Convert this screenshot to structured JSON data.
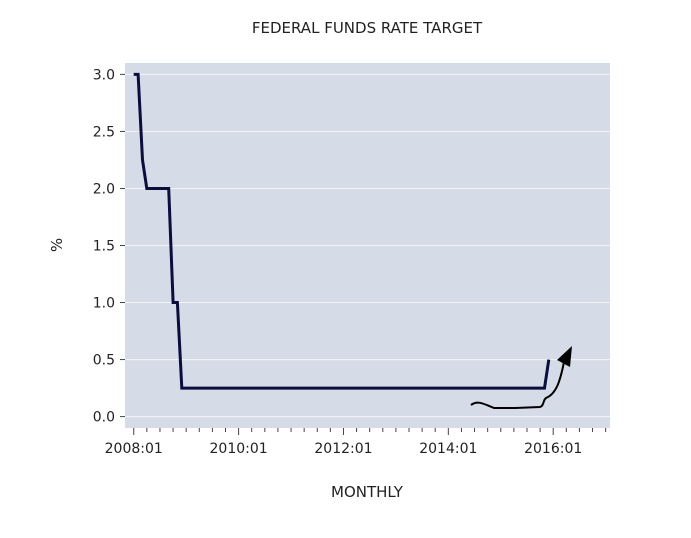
{
  "chart_data": {
    "type": "line",
    "title": "FEDERAL FUNDS RATE TARGET",
    "xlabel": "MONTHLY",
    "ylabel": "%",
    "x_ticks": [
      "2008:01",
      "2010:01",
      "2012:01",
      "2014:01",
      "2016:01"
    ],
    "y_ticks": [
      "0.0",
      "0.5",
      "1.0",
      "1.5",
      "2.0",
      "2.5",
      "3.0"
    ],
    "xlim": [
      "2007-11",
      "2017-02"
    ],
    "ylim": [
      -0.1,
      3.1
    ],
    "grid": "horizontal",
    "series": [
      {
        "x": [
          "2008-01",
          "2008-02",
          "2008-03",
          "2008-04",
          "2008-05",
          "2008-06",
          "2008-07",
          "2008-08",
          "2008-09",
          "2008-10",
          "2008-11",
          "2008-12",
          "2009-01",
          "2009-06",
          "2010-01",
          "2011-01",
          "2012-01",
          "2013-01",
          "2014-01",
          "2015-01",
          "2015-10",
          "2015-11",
          "2015-12"
        ],
        "values": [
          3.0,
          3.0,
          2.25,
          2.0,
          2.0,
          2.0,
          2.0,
          2.0,
          2.0,
          1.0,
          1.0,
          0.25,
          0.25,
          0.25,
          0.25,
          0.25,
          0.25,
          0.25,
          0.25,
          0.25,
          0.25,
          0.25,
          0.5
        ]
      }
    ],
    "annotation": "hand-drawn-upward-arrow"
  }
}
